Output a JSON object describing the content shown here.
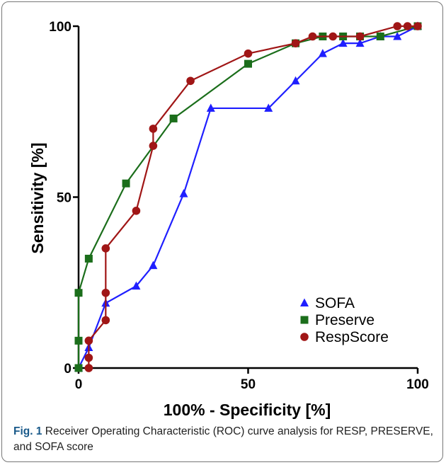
{
  "chart_data": {
    "type": "line",
    "xlabel": "100% - Specificity [%]",
    "ylabel": "Sensitivity [%]",
    "xlim": [
      0,
      100
    ],
    "ylim": [
      0,
      100
    ],
    "x_ticks": [
      "0",
      "50",
      "100"
    ],
    "y_ticks": [
      "0",
      "50",
      "100"
    ],
    "grid": false,
    "legend_position": "bottom-right",
    "series": [
      {
        "name": "SOFA",
        "color": "#1f1fff",
        "marker": "triangle",
        "x": [
          0,
          3,
          8,
          17,
          22,
          31,
          39,
          56,
          64,
          72,
          78,
          83,
          89,
          94,
          100
        ],
        "y": [
          0,
          6,
          19,
          24,
          30,
          51,
          76,
          76,
          84,
          92,
          95,
          95,
          97,
          97,
          100
        ]
      },
      {
        "name": "Preserve",
        "color": "#1b6e1b",
        "marker": "square",
        "x": [
          0,
          0,
          0,
          3,
          14,
          28,
          50,
          64,
          72,
          78,
          83,
          89,
          100
        ],
        "y": [
          0,
          8,
          22,
          32,
          54,
          73,
          89,
          95,
          97,
          97,
          97,
          97,
          100
        ]
      },
      {
        "name": "RespScore",
        "color": "#a01616",
        "marker": "circle",
        "x": [
          3,
          3,
          3,
          8,
          8,
          8,
          17,
          22,
          22,
          33,
          50,
          64,
          69,
          75,
          83,
          94,
          97,
          100
        ],
        "y": [
          0,
          3,
          8,
          14,
          22,
          35,
          46,
          65,
          70,
          84,
          92,
          95,
          97,
          97,
          97,
          100,
          100,
          100
        ]
      }
    ]
  },
  "caption": {
    "label": "Fig. 1",
    "text": " Receiver Operating Characteristic (ROC) curve analysis for RESP, PRESERVE, and SOFA score"
  }
}
